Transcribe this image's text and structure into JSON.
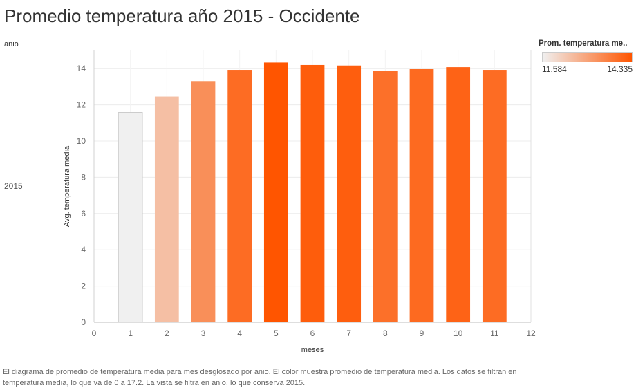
{
  "page": {
    "title": "Promedio temperatura año 2015 - Occidente",
    "row_header": "anio",
    "row_label": "2015",
    "caption": "El diagrama de promedio de temperatura media para mes desglosado por anio.  El color muestra promedio de temperatura media. Los datos se filtran en temperatura media, lo que va de 0 a 17.2. La vista se filtra en anio, lo que conserva 2015."
  },
  "legend": {
    "title": "Prom. temperatura me..",
    "min_label": "11.584",
    "max_label": "14.335",
    "color_low": "#f0f0f0",
    "color_high": "#ff5500"
  },
  "chart_data": {
    "type": "bar",
    "title": "Promedio temperatura año 2015 - Occidente",
    "xlabel": "meses",
    "ylabel": "Avg. temperatura media",
    "x": [
      1,
      2,
      3,
      4,
      5,
      6,
      7,
      8,
      9,
      10,
      11
    ],
    "values": [
      11.584,
      12.46,
      13.31,
      13.93,
      14.335,
      14.2,
      14.17,
      13.86,
      13.97,
      14.08,
      13.93
    ],
    "xlim": [
      0,
      12
    ],
    "ylim": [
      0,
      15
    ],
    "xticks": [
      0,
      1,
      2,
      3,
      4,
      5,
      6,
      7,
      8,
      9,
      10,
      11,
      12
    ],
    "yticks": [
      0,
      2,
      4,
      6,
      8,
      10,
      12,
      14
    ],
    "color_range": [
      11.584,
      14.335
    ],
    "grid": true,
    "legend_position": "top-right"
  }
}
